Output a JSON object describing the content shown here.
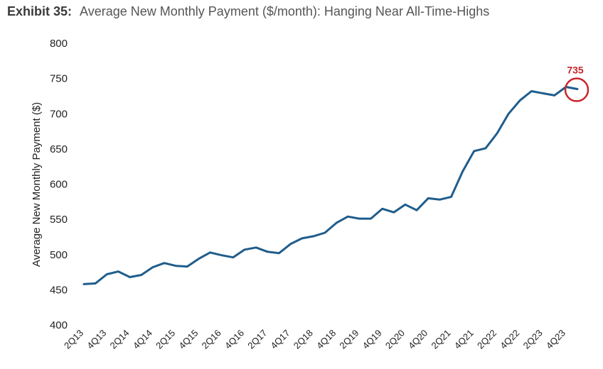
{
  "title": {
    "prefix": "Exhibit 35:",
    "text": "Average New Monthly Payment ($/month): Hanging Near All-Time-Highs"
  },
  "colors": {
    "line": "#1f5d8c",
    "callout": "#c8262b"
  },
  "chart_data": {
    "type": "line",
    "title": "Average New Monthly Payment ($/month): Hanging Near All-Time-Highs",
    "xlabel": "",
    "ylabel": "Average New Monthly Payment ($)",
    "ylim": [
      400,
      800
    ],
    "yticks": [
      400,
      450,
      500,
      550,
      600,
      650,
      700,
      750,
      800
    ],
    "grid": false,
    "x": [
      "2Q13",
      "3Q13",
      "4Q13",
      "1Q14",
      "2Q14",
      "3Q14",
      "4Q14",
      "1Q15",
      "2Q15",
      "3Q15",
      "4Q15",
      "1Q16",
      "2Q16",
      "3Q16",
      "4Q16",
      "1Q17",
      "2Q17",
      "3Q17",
      "4Q17",
      "1Q18",
      "2Q18",
      "3Q18",
      "4Q18",
      "1Q19",
      "2Q19",
      "3Q19",
      "4Q19",
      "1Q20",
      "2Q20",
      "3Q20",
      "4Q20",
      "1Q21",
      "2Q21",
      "3Q21",
      "4Q21",
      "1Q22",
      "2Q22",
      "3Q22",
      "4Q22",
      "1Q23",
      "2Q23",
      "3Q23",
      "4Q23",
      "1Q24"
    ],
    "xtick_labels": [
      "2Q13",
      "4Q13",
      "2Q14",
      "4Q14",
      "2Q15",
      "4Q15",
      "2Q16",
      "4Q16",
      "2Q17",
      "4Q17",
      "2Q18",
      "4Q18",
      "2Q19",
      "4Q19",
      "2Q20",
      "4Q20",
      "2Q21",
      "4Q21",
      "2Q22",
      "4Q22",
      "2Q23",
      "4Q23"
    ],
    "series": [
      {
        "values": [
          458,
          459,
          472,
          476,
          468,
          471,
          482,
          488,
          484,
          483,
          494,
          503,
          499,
          496,
          507,
          510,
          504,
          502,
          515,
          523,
          526,
          531,
          545,
          554,
          551,
          551,
          565,
          560,
          571,
          563,
          580,
          578,
          582,
          618,
          647,
          651,
          672,
          700,
          719,
          732,
          729,
          726,
          738,
          735
        ]
      }
    ],
    "annotations": [
      {
        "text": "735",
        "x": "1Q24",
        "y": 735
      }
    ]
  }
}
